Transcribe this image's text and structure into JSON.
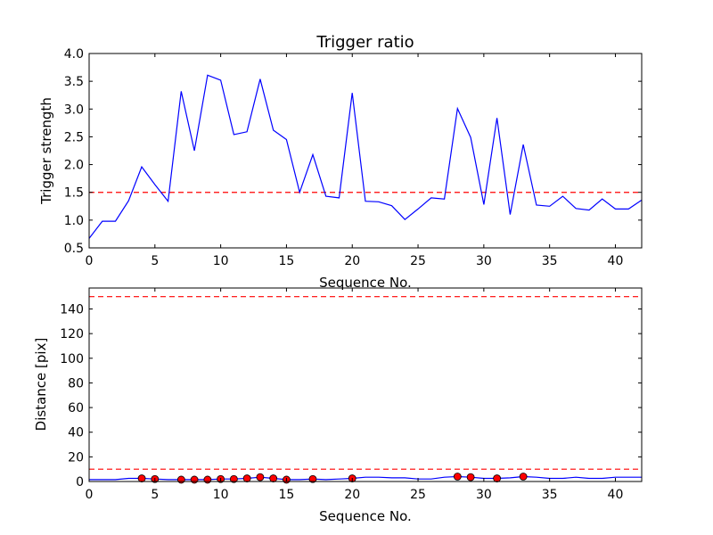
{
  "chart_data": [
    {
      "type": "line",
      "title": "Trigger ratio",
      "xlabel": "Sequence No.",
      "ylabel": "Trigger strength",
      "xlim": [
        0,
        42
      ],
      "ylim": [
        0.5,
        4.0
      ],
      "xticks": [
        "0",
        "5",
        "10",
        "15",
        "20",
        "25",
        "30",
        "35",
        "40"
      ],
      "yticks": [
        "0.5",
        "1.0",
        "1.5",
        "2.0",
        "2.5",
        "3.0",
        "3.5",
        "4.0"
      ],
      "grid": false,
      "series": [
        {
          "color": "#0000ff",
          "style": "solid",
          "x": [
            0,
            1,
            2,
            3,
            4,
            5,
            6,
            7,
            8,
            9,
            10,
            11,
            12,
            13,
            14,
            15,
            16,
            17,
            18,
            19,
            20,
            21,
            22,
            23,
            24,
            25,
            26,
            27,
            28,
            29,
            30,
            31,
            32,
            33,
            34,
            35,
            36,
            37,
            38,
            39,
            40,
            41,
            42
          ],
          "values": [
            0.67,
            0.98,
            0.98,
            1.35,
            1.96,
            1.64,
            1.34,
            3.32,
            2.25,
            3.61,
            3.52,
            2.54,
            2.59,
            3.54,
            2.62,
            2.45,
            1.5,
            2.18,
            1.43,
            1.4,
            3.29,
            1.34,
            1.33,
            1.26,
            1.01,
            1.2,
            1.4,
            1.38,
            3.01,
            2.49,
            1.28,
            2.84,
            1.1,
            2.36,
            1.27,
            1.25,
            1.43,
            1.21,
            1.18,
            1.38,
            1.2,
            1.2,
            1.36
          ]
        }
      ],
      "thresholds": [
        {
          "y": 1.5,
          "color": "#ff0000",
          "style": "dashed"
        }
      ]
    },
    {
      "type": "line",
      "xlabel": "Sequence No.",
      "ylabel": "Distance [pix]",
      "xlim": [
        0,
        42
      ],
      "ylim": [
        0,
        157
      ],
      "xticks": [
        "0",
        "5",
        "10",
        "15",
        "20",
        "25",
        "30",
        "35",
        "40"
      ],
      "yticks": [
        "0",
        "20",
        "40",
        "60",
        "80",
        "100",
        "120",
        "140"
      ],
      "grid": false,
      "series": [
        {
          "color": "#0000ff",
          "style": "solid",
          "x": [
            0,
            1,
            2,
            3,
            4,
            5,
            6,
            7,
            8,
            9,
            10,
            11,
            12,
            13,
            14,
            15,
            16,
            17,
            18,
            19,
            20,
            21,
            22,
            23,
            24,
            25,
            26,
            27,
            28,
            29,
            30,
            31,
            32,
            33,
            34,
            35,
            36,
            37,
            38,
            39,
            40,
            41,
            42
          ],
          "values": [
            1.5,
            1.5,
            1.5,
            2.5,
            2.5,
            2.0,
            1.5,
            1.5,
            1.5,
            1.5,
            2.0,
            2.0,
            2.5,
            3.5,
            2.5,
            1.5,
            1.5,
            2.0,
            1.5,
            2.0,
            2.5,
            3.5,
            3.5,
            3.0,
            3.0,
            2.0,
            2.0,
            3.5,
            4.0,
            3.5,
            2.5,
            2.5,
            3.0,
            4.0,
            3.5,
            2.5,
            2.5,
            3.5,
            2.5,
            2.5,
            3.5,
            3.5,
            3.5
          ]
        }
      ],
      "markers": {
        "color": "#ff0000",
        "x": [
          4,
          5,
          7,
          8,
          9,
          10,
          11,
          12,
          13,
          14,
          15,
          17,
          20,
          28,
          29,
          31,
          33
        ],
        "values": [
          2.5,
          2.0,
          1.5,
          1.5,
          1.5,
          2.0,
          2.0,
          2.5,
          3.5,
          2.5,
          1.5,
          2.0,
          2.5,
          4.0,
          3.5,
          2.5,
          4.0
        ]
      },
      "thresholds": [
        {
          "y": 150,
          "color": "#ff0000",
          "style": "dashed"
        },
        {
          "y": 10,
          "color": "#ff0000",
          "style": "dashed"
        }
      ]
    }
  ]
}
